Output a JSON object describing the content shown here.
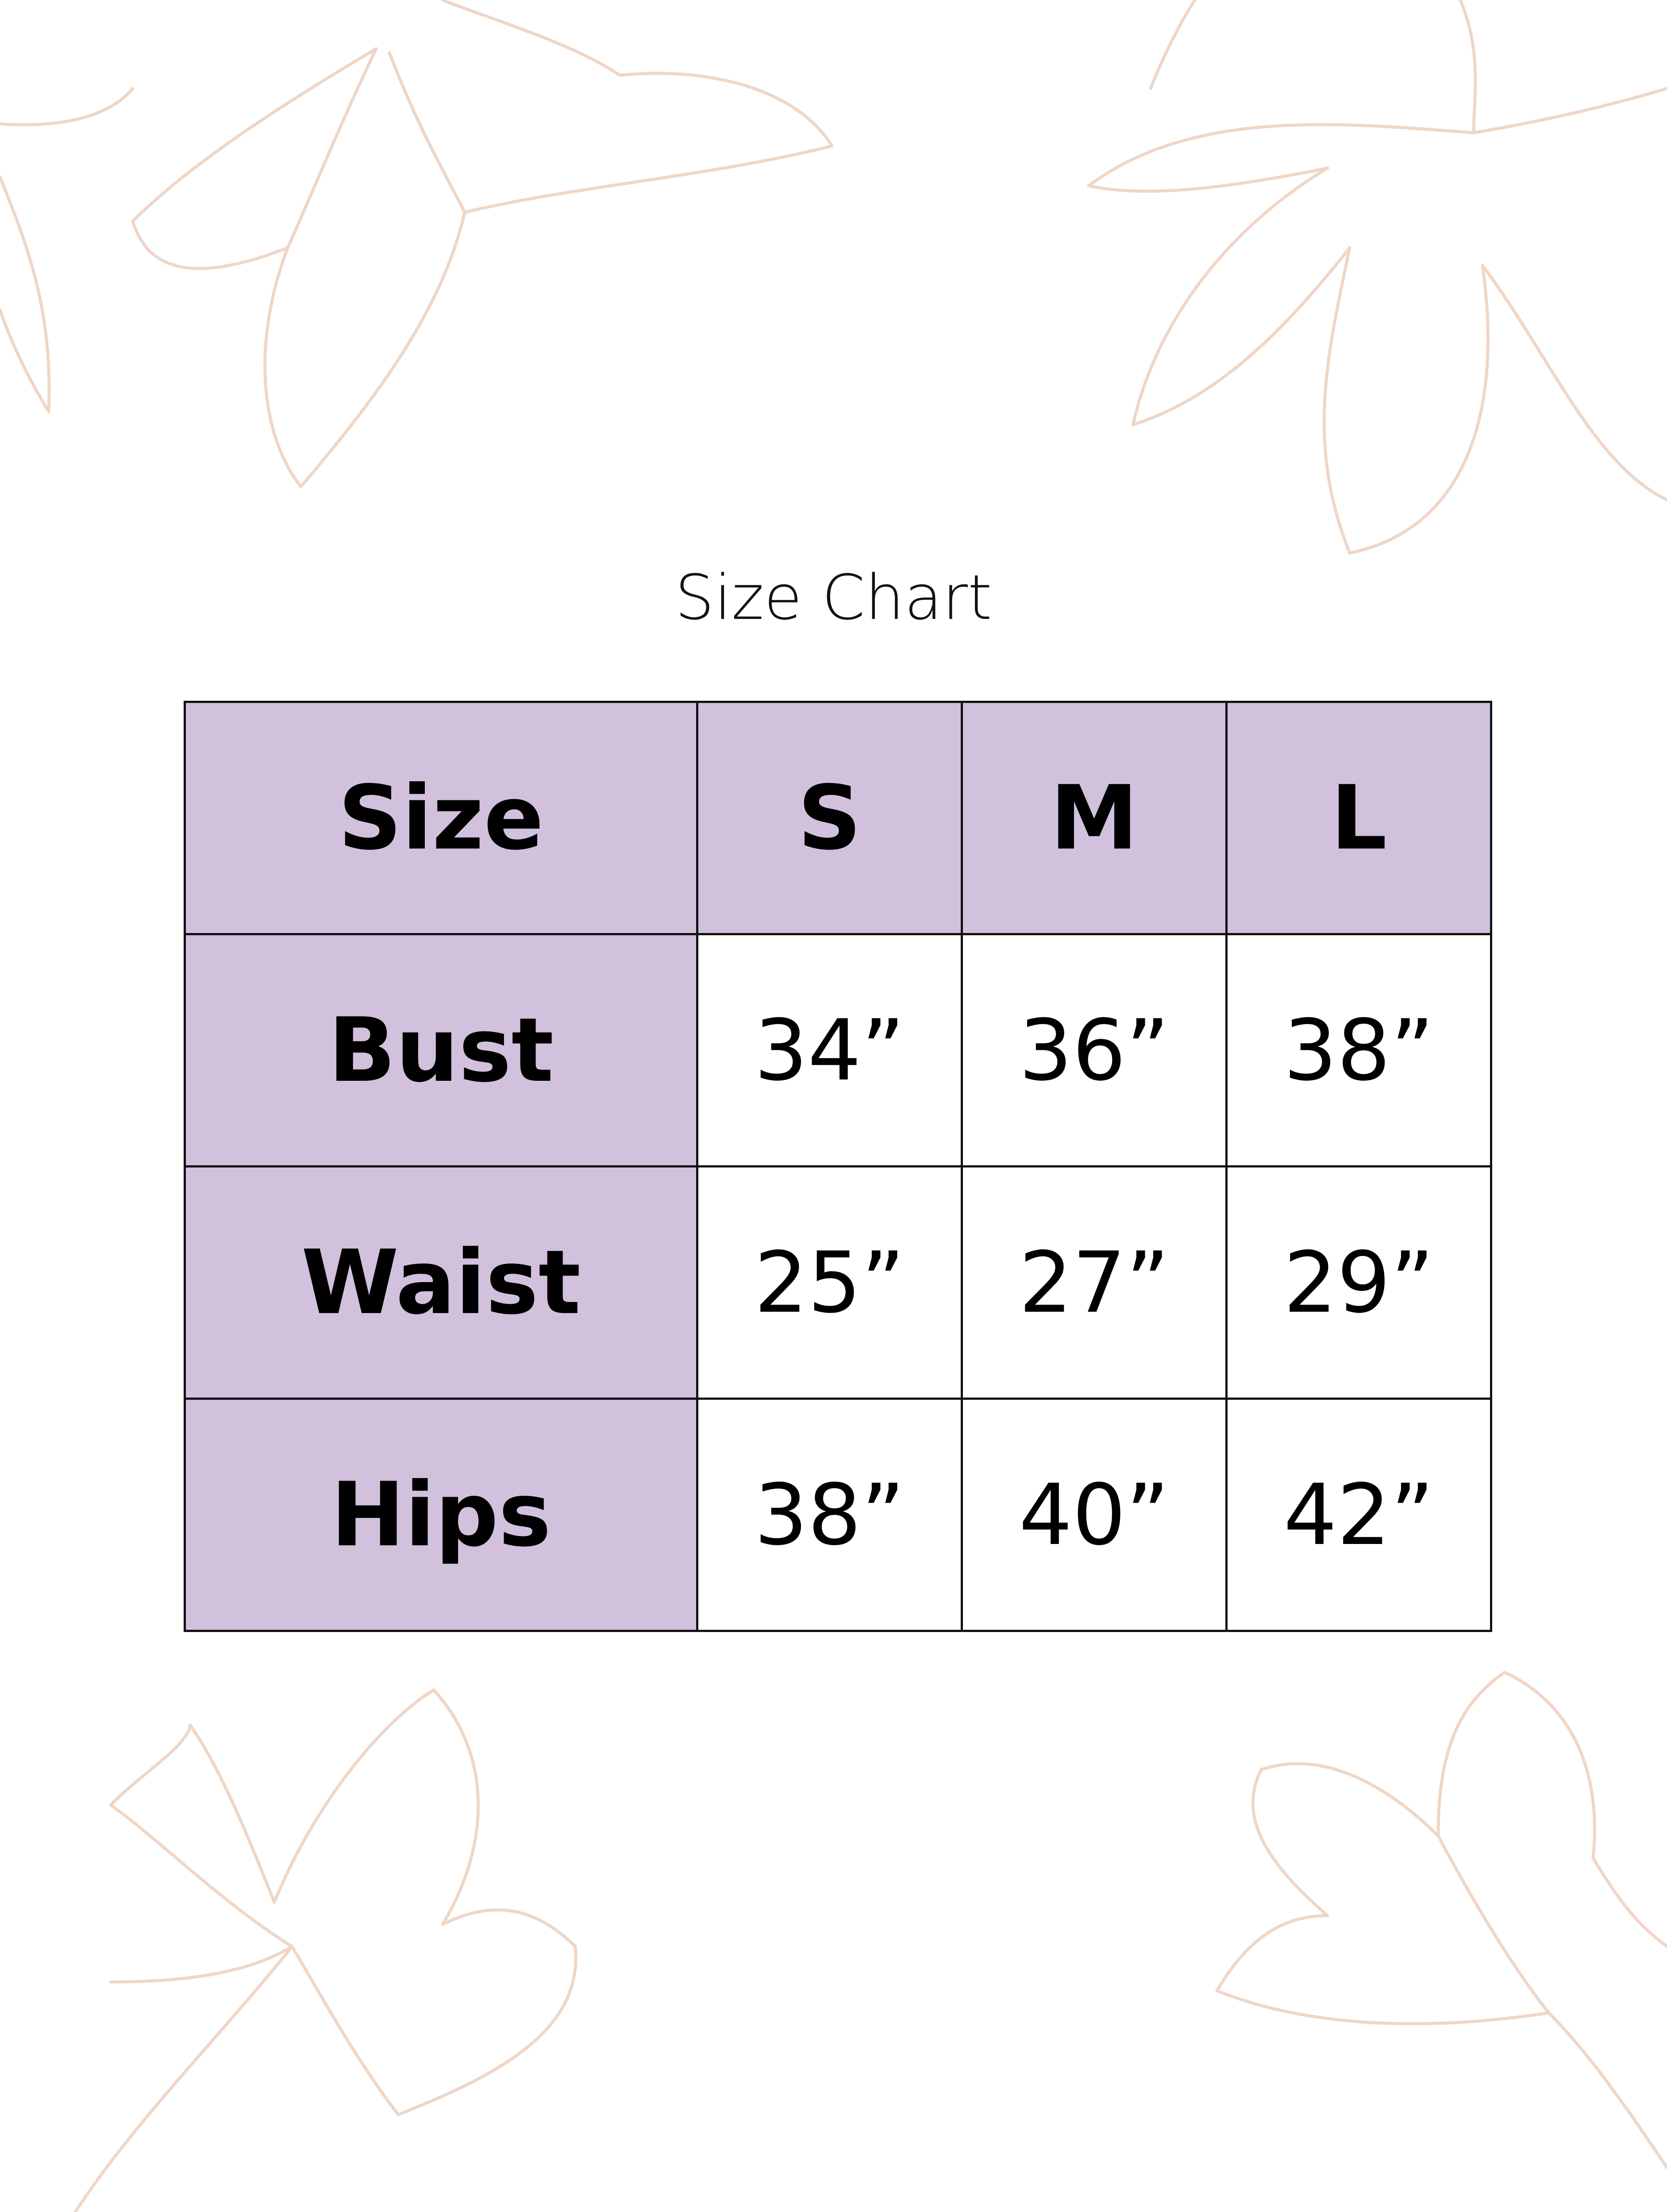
{
  "title": "Size Chart",
  "colors": {
    "header_fill": "#d1c1dd",
    "flower_outline": "#efd6c6",
    "border": "#111111"
  },
  "table": {
    "header": [
      "Size",
      "S",
      "M",
      "L"
    ],
    "rows": [
      {
        "label": "Bust",
        "values": [
          "34”",
          "36”",
          "38”"
        ]
      },
      {
        "label": "Waist",
        "values": [
          "25”",
          "27”",
          "29”"
        ]
      },
      {
        "label": "Hips",
        "values": [
          "38”",
          "40”",
          "42”"
        ]
      }
    ]
  }
}
